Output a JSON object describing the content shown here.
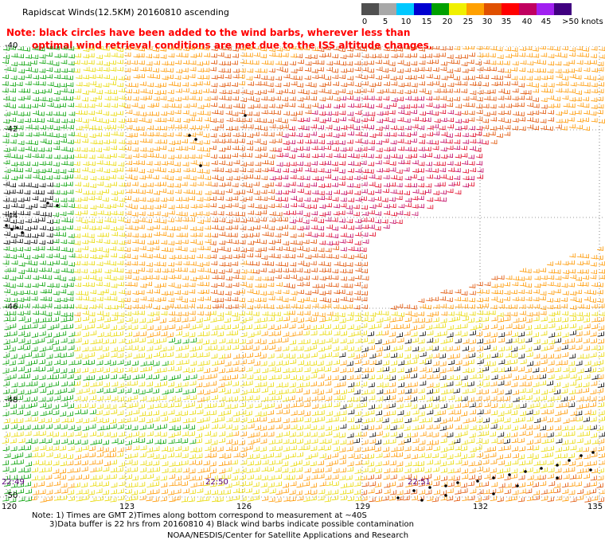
{
  "title": "Rapidscat Winds(12.5KM) 20160810 ascending",
  "legend": {
    "labels": [
      "0",
      "5",
      "10",
      "15",
      "20",
      "25",
      "30",
      "35",
      "40",
      "45",
      ">50 knots"
    ],
    "colors": [
      "#505050",
      "#a8a8a8",
      "#00c8ff",
      "#0000d0",
      "#00a000",
      "#f0f000",
      "#ffa000",
      "#e05000",
      "#ff0000",
      "#c00060",
      "#a020f0",
      "#400080"
    ]
  },
  "note": {
    "line1": "Note: black circles have been added to the wind barbs, wherever less than",
    "line2": "optimal wind retrieval conditions are met due to the ISS altitude changes."
  },
  "map": {
    "latitude_labels": [
      "-40",
      "-42",
      "-44",
      "-46",
      "-48",
      "-50"
    ],
    "longitude_labels": [
      "120",
      "123",
      "126",
      "129",
      "132",
      "135"
    ],
    "time_labels": [
      "22:49",
      "22:50",
      "22:51"
    ],
    "barb_colors": {
      "green": "#00a000",
      "yellow": "#e8d800",
      "orange": "#ff9800",
      "darkorange": "#e05000",
      "red": "#e00020",
      "magenta": "#c00060",
      "black": "#000000",
      "blue": "#0000d0"
    }
  },
  "footer": {
    "line1": "Note: 1) Times are GMT 2)Times along bottom correspond to measurement at ~40S",
    "line2": "3)Data buffer is 22 hrs from 20160810 4) Black wind barbs indicate possible contamination",
    "line3": "NOAA/NESDIS/Center for Satellite Applications and Research"
  }
}
